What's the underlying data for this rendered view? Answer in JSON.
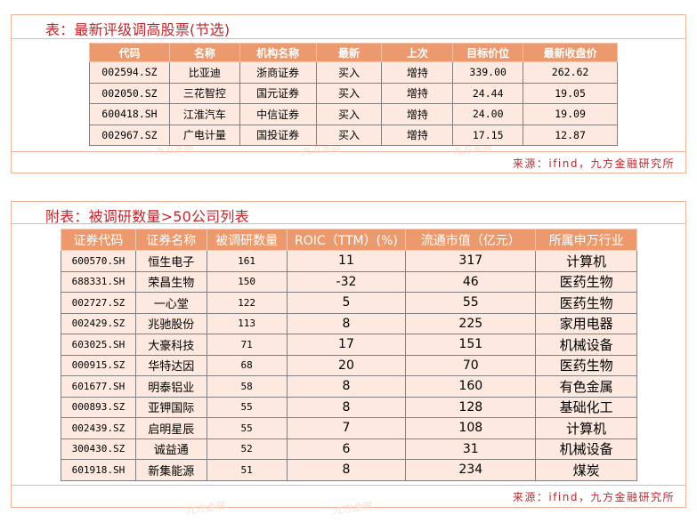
{
  "panel1": {
    "title": "表：最新评级调高股票(节选)",
    "source": "来源：ifind，九方金融研究所",
    "watermark": "九方金融",
    "columns": [
      "代码",
      "名称",
      "机构名称",
      "最新",
      "上次",
      "目标价位",
      "最新收盘价"
    ],
    "rows": [
      [
        "002594.SZ",
        "比亚迪",
        "浙商证券",
        "买入",
        "增持",
        "339.00",
        "262.62"
      ],
      [
        "002050.SZ",
        "三花智控",
        "国元证券",
        "买入",
        "增持",
        "24.44",
        "19.05"
      ],
      [
        "600418.SH",
        "江淮汽车",
        "中信证券",
        "买入",
        "增持",
        "24.00",
        "19.09"
      ],
      [
        "002967.SZ",
        "广电计量",
        "国投证券",
        "买入",
        "增持",
        "17.15",
        "12.87"
      ]
    ]
  },
  "panel2": {
    "title": "附表：被调研数量>50公司列表",
    "source": "来源：ifind，九方金融研究所",
    "watermark": "九方金融",
    "columns": [
      "证券代码",
      "证券名称",
      "被调研数量",
      "ROIC（TTM）(%)",
      "流通市值（亿元）",
      "所属申万行业"
    ],
    "rows": [
      [
        "600570.SH",
        "恒生电子",
        "161",
        "11",
        "317",
        "计算机"
      ],
      [
        "688331.SH",
        "荣昌生物",
        "150",
        "-32",
        "46",
        "医药生物"
      ],
      [
        "002727.SZ",
        "一心堂",
        "122",
        "5",
        "55",
        "医药生物"
      ],
      [
        "002429.SZ",
        "兆驰股份",
        "113",
        "8",
        "225",
        "家用电器"
      ],
      [
        "603025.SH",
        "大豪科技",
        "71",
        "17",
        "151",
        "机械设备"
      ],
      [
        "000915.SZ",
        "华特达因",
        "68",
        "20",
        "70",
        "医药生物"
      ],
      [
        "601677.SH",
        "明泰铝业",
        "58",
        "8",
        "160",
        "有色金属"
      ],
      [
        "000893.SZ",
        "亚钾国际",
        "55",
        "8",
        "128",
        "基础化工"
      ],
      [
        "002439.SZ",
        "启明星辰",
        "55",
        "7",
        "108",
        "计算机"
      ],
      [
        "300430.SZ",
        "诚益通",
        "52",
        "6",
        "31",
        "机械设备"
      ],
      [
        "601918.SH",
        "新集能源",
        "51",
        "8",
        "234",
        "煤炭"
      ]
    ]
  },
  "colors": {
    "accent": "#c0262d",
    "header_fill": "#ec9a6d",
    "row_fill": "#fde9df",
    "border": "#f0b69a"
  }
}
